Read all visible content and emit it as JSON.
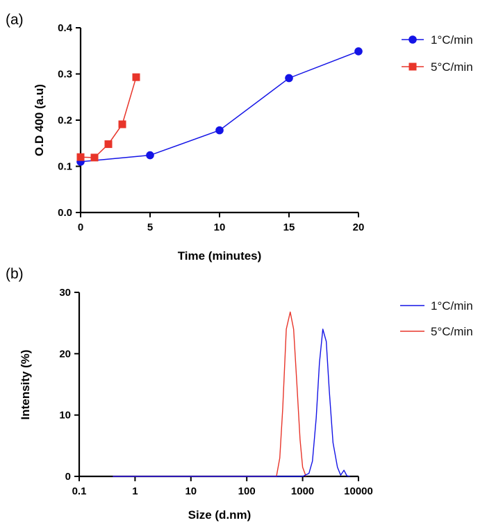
{
  "colors": {
    "blue": "#1414e6",
    "red": "#e8352a"
  },
  "chart_data": [
    {
      "panel_label": "(a)",
      "type": "line",
      "xlabel": "Time (minutes)",
      "ylabel": "O.D 400 (a.u)",
      "xlim": [
        0,
        20
      ],
      "ylim": [
        0,
        0.4
      ],
      "xticks": [
        "0",
        "5",
        "10",
        "15",
        "20"
      ],
      "yticks": [
        "0.0",
        "0.1",
        "0.2",
        "0.3",
        "0.4"
      ],
      "legend_position": "right",
      "series": [
        {
          "name": "1°C/min",
          "color": "#1414e6",
          "marker": "circle",
          "x": [
            0,
            5,
            10,
            15,
            20
          ],
          "y": [
            0.11,
            0.124,
            0.178,
            0.291,
            0.349
          ]
        },
        {
          "name": "5°C/min",
          "color": "#e8352a",
          "marker": "square",
          "x": [
            0,
            1,
            2,
            3,
            4
          ],
          "y": [
            0.12,
            0.119,
            0.148,
            0.191,
            0.293
          ]
        }
      ]
    },
    {
      "panel_label": "(b)",
      "type": "line",
      "xscale": "log",
      "xlabel": "Size (d.nm)",
      "ylabel": "Intensity (%)",
      "xlim": [
        0.1,
        10000
      ],
      "ylim": [
        0,
        30
      ],
      "xticks": [
        "0.1",
        "1",
        "10",
        "100",
        "1000",
        "10000"
      ],
      "yticks": [
        "0",
        "10",
        "20",
        "30"
      ],
      "legend_position": "right",
      "series": [
        {
          "name": "1°C/min",
          "color": "#1414e6",
          "x": [
            0.4,
            1000,
            1300,
            1500,
            1750,
            2000,
            2300,
            2650,
            3000,
            3500,
            4200,
            4800,
            5500,
            6200,
            7000
          ],
          "y": [
            0,
            0,
            0.5,
            2.5,
            9.5,
            18.5,
            24,
            22,
            14,
            5.5,
            1.5,
            0.2,
            1,
            0.1,
            0
          ]
        },
        {
          "name": "5°C/min",
          "color": "#e8352a",
          "x": [
            0.4,
            340,
            390,
            440,
            510,
            600,
            690,
            790,
            900,
            1000,
            1150
          ],
          "y": [
            0,
            0,
            3,
            11,
            24,
            26.8,
            24,
            15,
            6,
            1.5,
            0
          ]
        }
      ]
    }
  ]
}
